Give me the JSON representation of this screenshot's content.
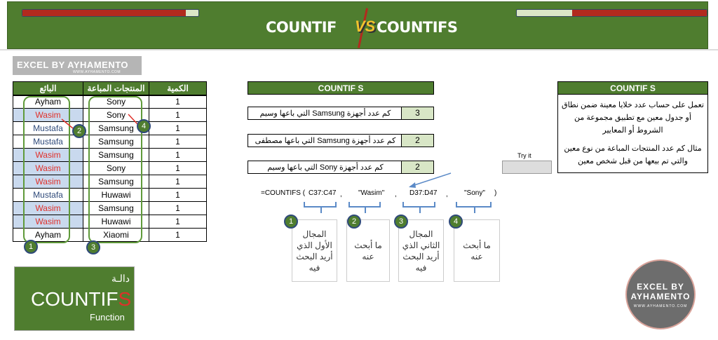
{
  "banner": {
    "left_title": "COUNTIF",
    "vs": "VS",
    "right_title": "COUNTIFS",
    "left_bar_fill": 0.93,
    "right_bar_fill": 0.71,
    "colors": {
      "green": "#4f7d2f",
      "red": "#b22a1e"
    }
  },
  "logo": {
    "text": "EXCEL BY AYHAMENTO",
    "url": "WWW.AYHAMENTO.COM"
  },
  "table": {
    "headers": [
      "البائع",
      "المنتجات المباعة",
      "الكمية"
    ],
    "rows": [
      [
        "Ayham",
        "Sony",
        "1"
      ],
      [
        "Wasim",
        "Sony",
        "1"
      ],
      [
        "Mustafa",
        "Samsung",
        "1"
      ],
      [
        "Mustafa",
        "Samsung",
        "1"
      ],
      [
        "Wasim",
        "Samsung",
        "1"
      ],
      [
        "Wasim",
        "Sony",
        "1"
      ],
      [
        "Wasim",
        "Samsung",
        "1"
      ],
      [
        "Mustafa",
        "Huwawi",
        "1"
      ],
      [
        "Wasim",
        "Samsung",
        "1"
      ],
      [
        "Wasim",
        "Huwawi",
        "1"
      ],
      [
        "Ayham",
        "Xiaomi",
        "1"
      ]
    ]
  },
  "markers": [
    "1",
    "2",
    "3",
    "4"
  ],
  "countifs_panel": {
    "header": "COUNTIF S",
    "questions": [
      {
        "text": "كم عدد أجهزة Samsung التي باعها وسيم",
        "value": "3"
      },
      {
        "text": "كم عدد أجهزة Samsung التي باعها مصطفى",
        "value": "2"
      },
      {
        "text": "كم عدد أجهزة Sony التي باعها وسيم",
        "value": "2"
      }
    ],
    "try_label": "Try it"
  },
  "description": {
    "header": "COUNTIF S",
    "para1": "تعمل على حساب عدد خلايا معينة ضمن نطاق أو جدول معين مع تطبيق مجموعة من الشروط أو المعايير",
    "para2": "مثال كم عدد المنتجات المباعة من نوع معين والتي تم بيعها من قبل شخص معين"
  },
  "formula": {
    "fn": "=COUNTIFS (",
    "args": [
      "C37:C47",
      "\"Wasim\"",
      "D37:D47",
      "\"Sony\""
    ],
    "sep": ",",
    "close": ")"
  },
  "arg_notes": [
    "المجال الأول الذي أريد البحث فيه",
    "ما أبحث عنه",
    "المجال الثاني الذي أريد البحث فيه",
    "ما أبحث عنه"
  ],
  "function_card": {
    "arabic": "دالـة",
    "name": "COUNTIF",
    "name_accent": "S",
    "sub": "Function"
  },
  "circle_logo": {
    "line1": "EXCEL BY",
    "line2": "AYHAMENTO",
    "url": "WWW.AYHAMENTO.COM"
  }
}
